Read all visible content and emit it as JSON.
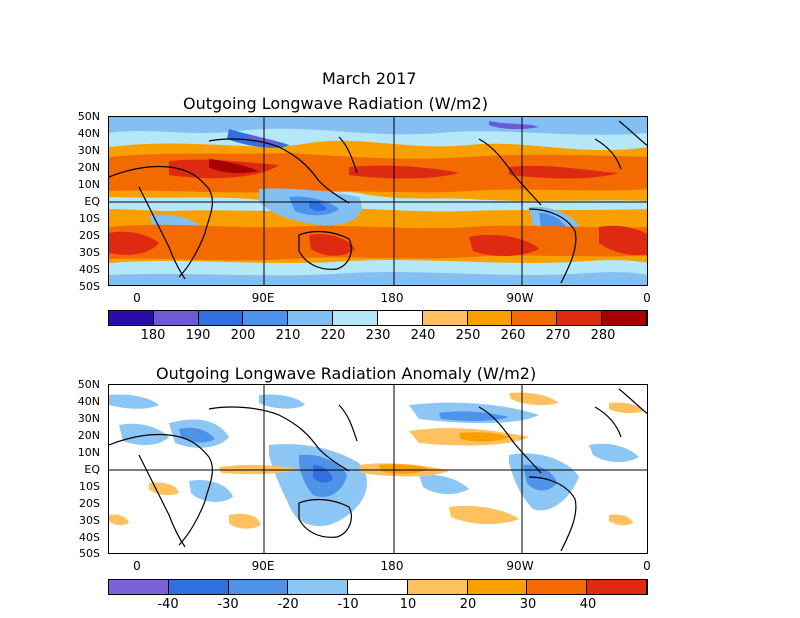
{
  "figure_title": "March 2017",
  "panels": [
    {
      "title": "Outgoing Longwave Radiation (W/m2)",
      "lat_labels": [
        "50N",
        "40N",
        "30N",
        "20N",
        "10N",
        "EQ",
        "10S",
        "20S",
        "30S",
        "40S",
        "50S"
      ],
      "lon_labels": [
        "0",
        "90E",
        "180",
        "90W",
        "0"
      ],
      "colorbar": {
        "labels": [
          "180",
          "190",
          "200",
          "210",
          "220",
          "230",
          "240",
          "250",
          "260",
          "270",
          "280"
        ],
        "colors": [
          "#2a0aa8",
          "#6b5bd6",
          "#2f6fe0",
          "#4c92ea",
          "#84bff2",
          "#b4e8f8",
          "#ffffff",
          "#ffc060",
          "#f9a000",
          "#f36a00",
          "#de2a10",
          "#a70000"
        ]
      }
    },
    {
      "title": "Outgoing Longwave Radiation Anomaly (W/m2)",
      "lat_labels": [
        "50N",
        "40N",
        "30N",
        "20N",
        "10N",
        "EQ",
        "10S",
        "20S",
        "30S",
        "40S",
        "50S"
      ],
      "lon_labels": [
        "0",
        "90E",
        "180",
        "90W",
        "0"
      ],
      "colorbar": {
        "labels": [
          "-40",
          "-30",
          "-20",
          "-10",
          "10",
          "20",
          "30",
          "40"
        ],
        "colors": [
          "#7b62d8",
          "#2f6fe0",
          "#4f92ea",
          "#8cc6f4",
          "#ffffff",
          "#ffc060",
          "#f9a000",
          "#f36a00",
          "#de2a10"
        ]
      }
    }
  ]
}
